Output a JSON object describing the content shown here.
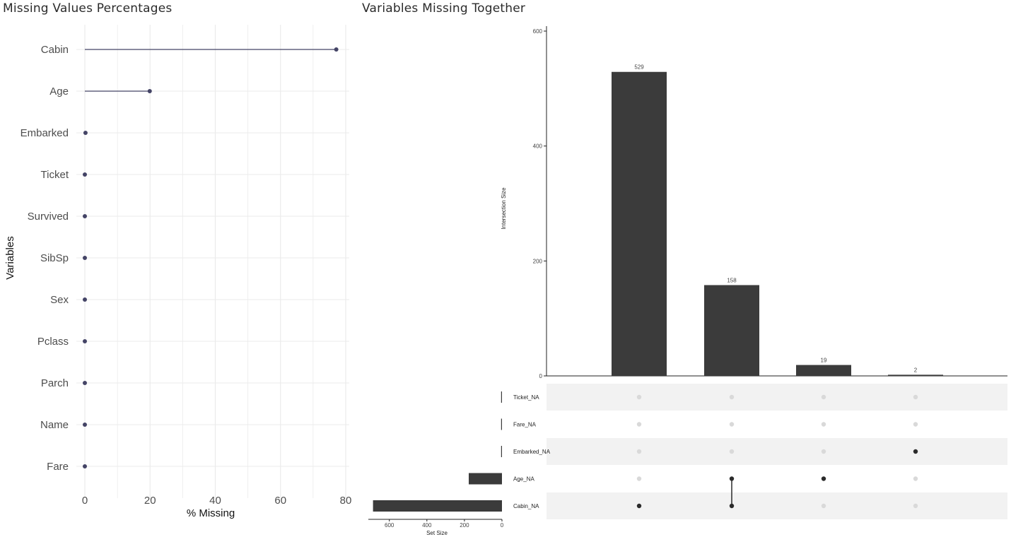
{
  "titles": {
    "left": "Missing Values Percentages",
    "right": "Variables Missing Together"
  },
  "colors": {
    "lollipop": "#444466",
    "bar": "#3b3b3b",
    "grid": "#ebebeb",
    "dot_active": "#2b2b2b",
    "dot_inactive": "#d9d9d9",
    "stripe": "#f2f2f2"
  },
  "chart_data": [
    {
      "type": "lollipop",
      "title": "Missing Values Percentages",
      "xlabel": "% Missing",
      "ylabel": "Variables",
      "xlim": [
        0,
        80
      ],
      "xticks": [
        0,
        20,
        40,
        60,
        80
      ],
      "grid": true,
      "categories": [
        "Cabin",
        "Age",
        "Embarked",
        "Ticket",
        "Survived",
        "SibSp",
        "Sex",
        "Pclass",
        "Parch",
        "Name",
        "Fare"
      ],
      "values": [
        77.1,
        19.9,
        0.2,
        0,
        0,
        0,
        0,
        0,
        0,
        0,
        0
      ]
    },
    {
      "type": "bar",
      "title": "Variables Missing Together",
      "ylabel": "Intersection Size",
      "ylim": [
        0,
        600
      ],
      "yticks": [
        0,
        200,
        400,
        600
      ],
      "intersections": [
        {
          "value": 529,
          "label": "529",
          "sets": [
            "Cabin_NA"
          ]
        },
        {
          "value": 158,
          "label": "158",
          "sets": [
            "Age_NA",
            "Cabin_NA"
          ]
        },
        {
          "value": 19,
          "label": "19",
          "sets": [
            "Age_NA"
          ]
        },
        {
          "value": 2,
          "label": "2",
          "sets": [
            "Embarked_NA"
          ]
        }
      ],
      "sets": [
        "Ticket_NA",
        "Fare_NA",
        "Embarked_NA",
        "Age_NA",
        "Cabin_NA"
      ],
      "set_sizes": {
        "xlabel": "Set Size",
        "xticks": [
          600,
          400,
          200,
          0
        ],
        "xlim": [
          0,
          700
        ],
        "values": [
          0,
          0,
          2,
          177,
          687
        ]
      }
    }
  ]
}
